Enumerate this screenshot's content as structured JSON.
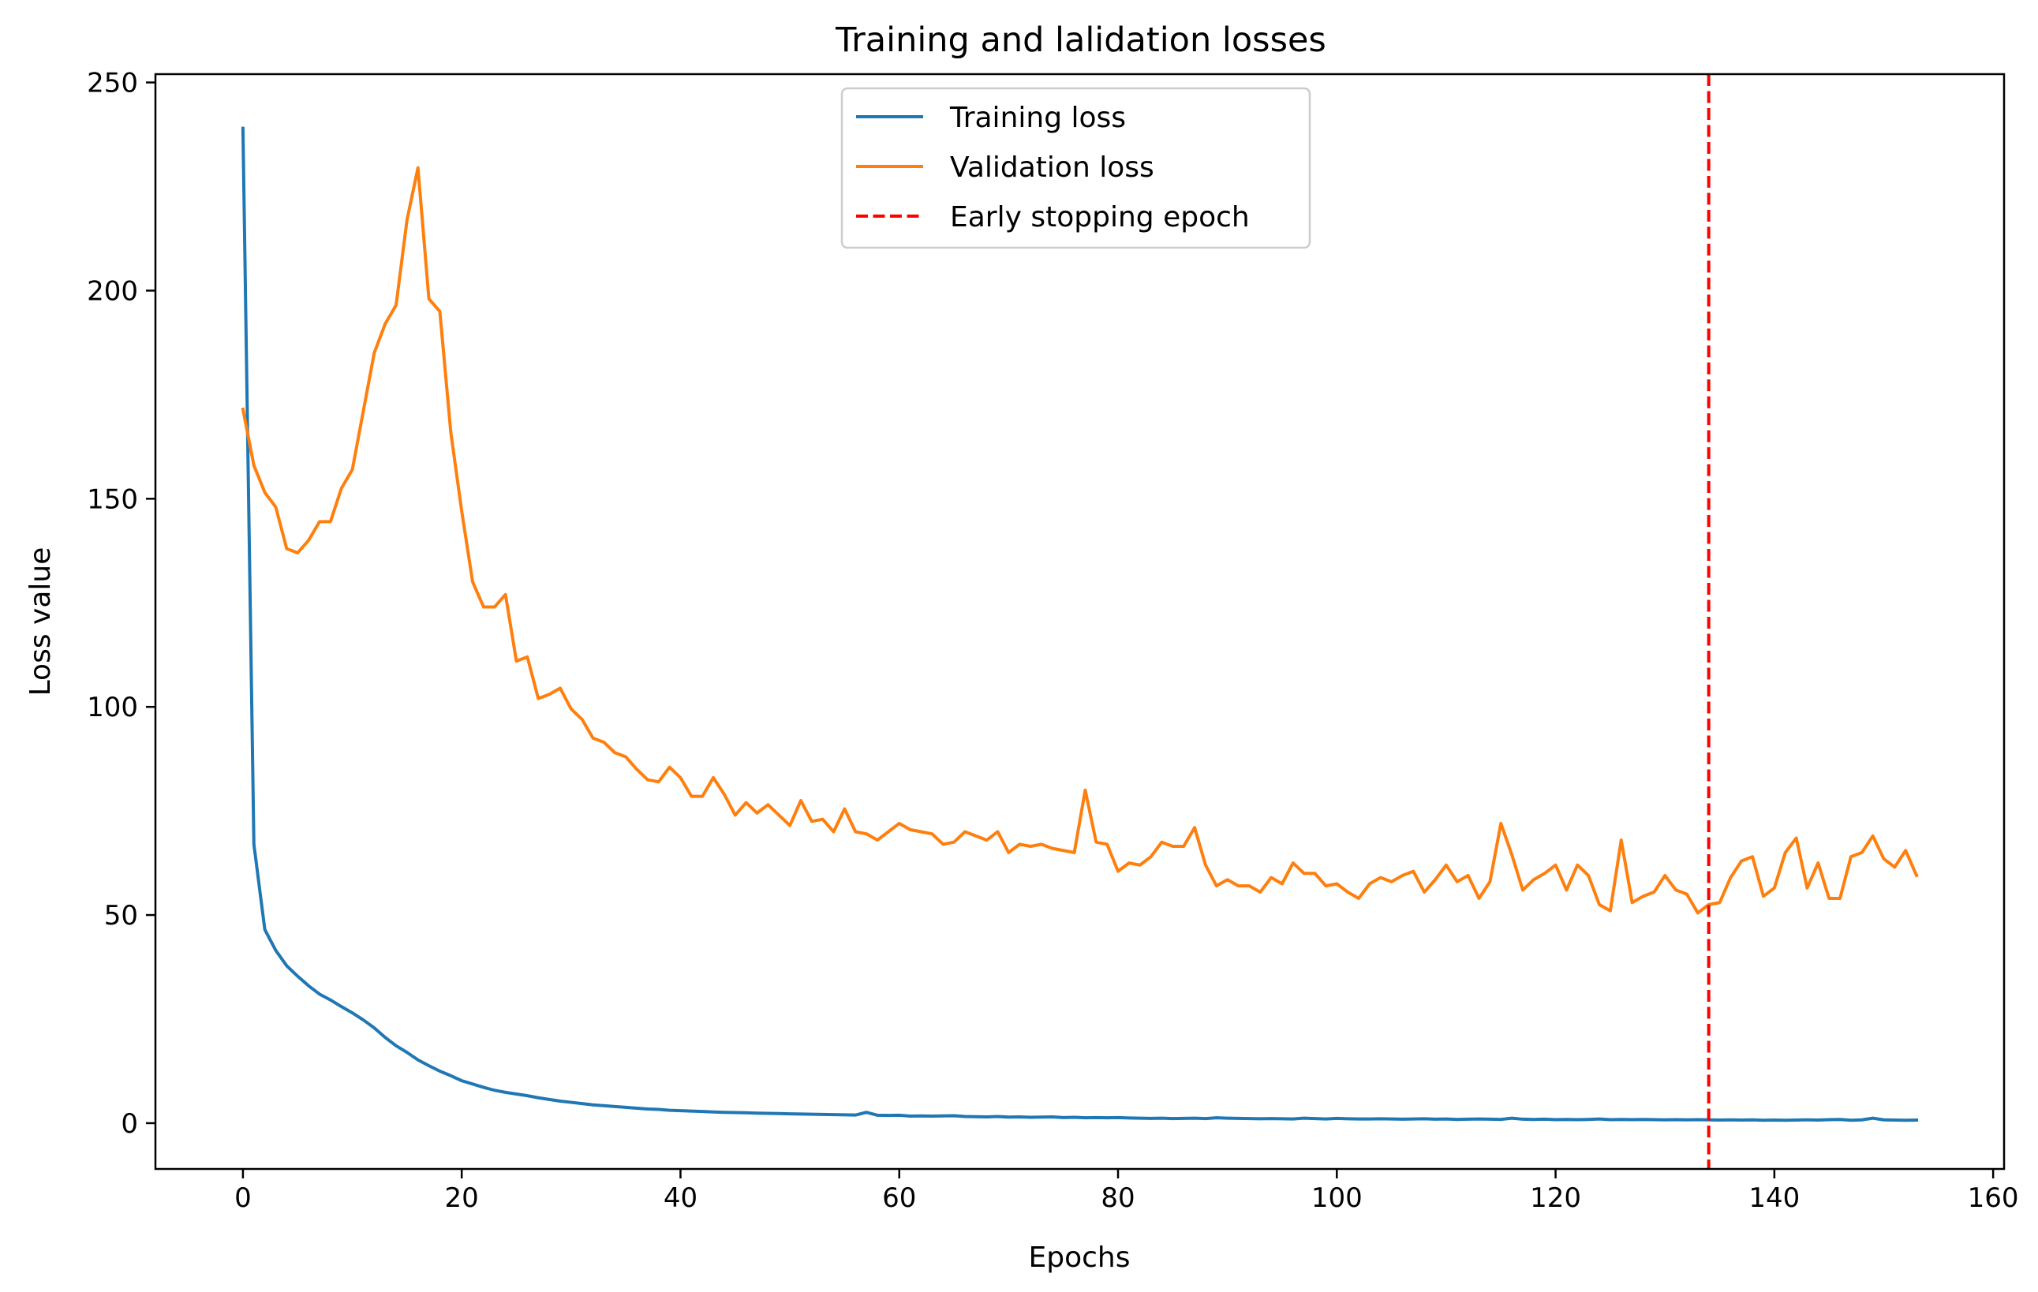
{
  "chart_data": {
    "type": "line",
    "title": "Training and lalidation losses",
    "xlabel": "Epochs",
    "ylabel": "Loss value",
    "xlim": [
      -8,
      161
    ],
    "ylim": [
      -11,
      252
    ],
    "xticks": [
      0,
      20,
      40,
      60,
      80,
      100,
      120,
      140,
      160
    ],
    "yticks": [
      0,
      50,
      100,
      150,
      200,
      250
    ],
    "grid": false,
    "legend_position": "upper center",
    "series": [
      {
        "name": "Training loss",
        "color": "#1f77b4",
        "style": "solid",
        "x_start": 0,
        "values": [
          239,
          67,
          46.5,
          41.5,
          37.8,
          35.3,
          33,
          31,
          29.6,
          28,
          26.5,
          24.8,
          22.9,
          20.6,
          18.6,
          17,
          15.2,
          13.8,
          12.5,
          11.4,
          10.2,
          9.4,
          8.6,
          7.9,
          7.4,
          7,
          6.6,
          6.1,
          5.7,
          5.3,
          5,
          4.7,
          4.4,
          4.2,
          4,
          3.8,
          3.6,
          3.4,
          3.3,
          3.1,
          3,
          2.9,
          2.8,
          2.7,
          2.6,
          2.55,
          2.5,
          2.4,
          2.35,
          2.3,
          2.25,
          2.2,
          2.15,
          2.1,
          2.05,
          2.0,
          1.95,
          2.6,
          1.9,
          1.85,
          1.9,
          1.7,
          1.75,
          1.7,
          1.75,
          1.8,
          1.6,
          1.55,
          1.5,
          1.6,
          1.45,
          1.5,
          1.4,
          1.45,
          1.5,
          1.35,
          1.4,
          1.3,
          1.35,
          1.3,
          1.35,
          1.25,
          1.2,
          1.15,
          1.2,
          1.1,
          1.15,
          1.2,
          1.1,
          1.3,
          1.2,
          1.15,
          1.1,
          1.05,
          1.1,
          1.05,
          1.0,
          1.2,
          1.1,
          1.0,
          1.15,
          1.05,
          1.0,
          1.0,
          1.05,
          1.0,
          0.95,
          1.0,
          1.05,
          0.95,
          1.0,
          0.9,
          0.95,
          1.0,
          0.95,
          0.9,
          1.2,
          0.95,
          0.9,
          0.95,
          0.85,
          0.9,
          0.85,
          0.9,
          1.0,
          0.85,
          0.9,
          0.85,
          0.9,
          0.85,
          0.8,
          0.85,
          0.8,
          0.85,
          0.8,
          0.75,
          0.8,
          0.75,
          0.8,
          0.7,
          0.75,
          0.7,
          0.75,
          0.8,
          0.75,
          0.85,
          0.9,
          0.7,
          0.8,
          1.2,
          0.8,
          0.75,
          0.7,
          0.75
        ]
      },
      {
        "name": "Validation loss",
        "color": "#ff7f0e",
        "style": "solid",
        "x_start": 0,
        "values": [
          171.5,
          158,
          151.5,
          148,
          138,
          137,
          140,
          144.5,
          144.5,
          152.5,
          157,
          171,
          185,
          192,
          196.5,
          217,
          229.5,
          198,
          195,
          166,
          147,
          130,
          124,
          124,
          127,
          111,
          112,
          102,
          103,
          104.5,
          99.5,
          97,
          92.5,
          91.5,
          89,
          88,
          85,
          82.5,
          82,
          85.5,
          83,
          78.5,
          78.5,
          83,
          79,
          74,
          77,
          74.5,
          76.5,
          74,
          71.5,
          77.5,
          72.5,
          73,
          70,
          75.5,
          70,
          69.5,
          68,
          70,
          72,
          70.5,
          70,
          69.5,
          67,
          67.5,
          70,
          69,
          68,
          70,
          65,
          67,
          66.5,
          67,
          66,
          65.5,
          65,
          80,
          67.5,
          67,
          60.5,
          62.5,
          62,
          64,
          67.5,
          66.5,
          66.5,
          71,
          62,
          57,
          58.5,
          57,
          57,
          55.5,
          59,
          57.5,
          62.5,
          60,
          60,
          57,
          57.5,
          55.5,
          54,
          57.5,
          59,
          58,
          59.5,
          60.5,
          55.5,
          58.5,
          62,
          58,
          59.5,
          54,
          58,
          72,
          64.5,
          56,
          58.5,
          60,
          62,
          56,
          62,
          59.5,
          52.5,
          51,
          68,
          53,
          54.5,
          55.5,
          59.5,
          56,
          55,
          50.5,
          52.5,
          53,
          59,
          63,
          64,
          54.5,
          56.5,
          65,
          68.5,
          56.5,
          62.5,
          54,
          54,
          64,
          65,
          69,
          63.5,
          61.5,
          65.5,
          59.5
        ]
      },
      {
        "name": "Early stopping epoch",
        "color": "#ff0000",
        "style": "dashed",
        "type": "vline",
        "x": 134
      }
    ]
  }
}
